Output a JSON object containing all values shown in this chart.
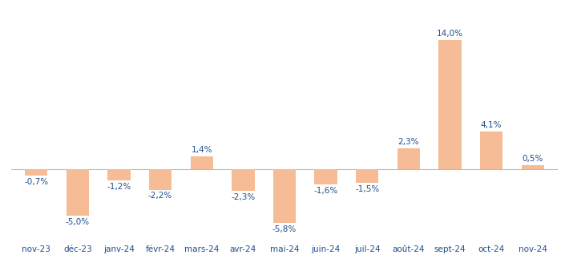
{
  "categories": [
    "nov-23",
    "déc-23",
    "janv-24",
    "févr-24",
    "mars-24",
    "avr-24",
    "mai-24",
    "juin-24",
    "juil-24",
    "août-24",
    "sept-24",
    "oct-24",
    "nov-24"
  ],
  "values": [
    -0.7,
    -5.0,
    -1.2,
    -2.2,
    1.4,
    -2.3,
    -5.8,
    -1.6,
    -1.5,
    2.3,
    14.0,
    4.1,
    0.5
  ],
  "labels": [
    "-0,7%",
    "-5,0%",
    "-1,2%",
    "-2,2%",
    "1,4%",
    "-2,3%",
    "-5,8%",
    "-1,6%",
    "-1,5%",
    "2,3%",
    "14,0%",
    "4,1%",
    "0,5%"
  ],
  "bar_color": "#F5BC96",
  "label_color": "#1F4E8C",
  "background_color": "#FFFFFF",
  "label_fontsize": 7.5,
  "tick_fontsize": 7.5,
  "tick_color": "#1F4E8C",
  "ylim": [
    -7.5,
    17.5
  ],
  "bar_width": 0.55
}
